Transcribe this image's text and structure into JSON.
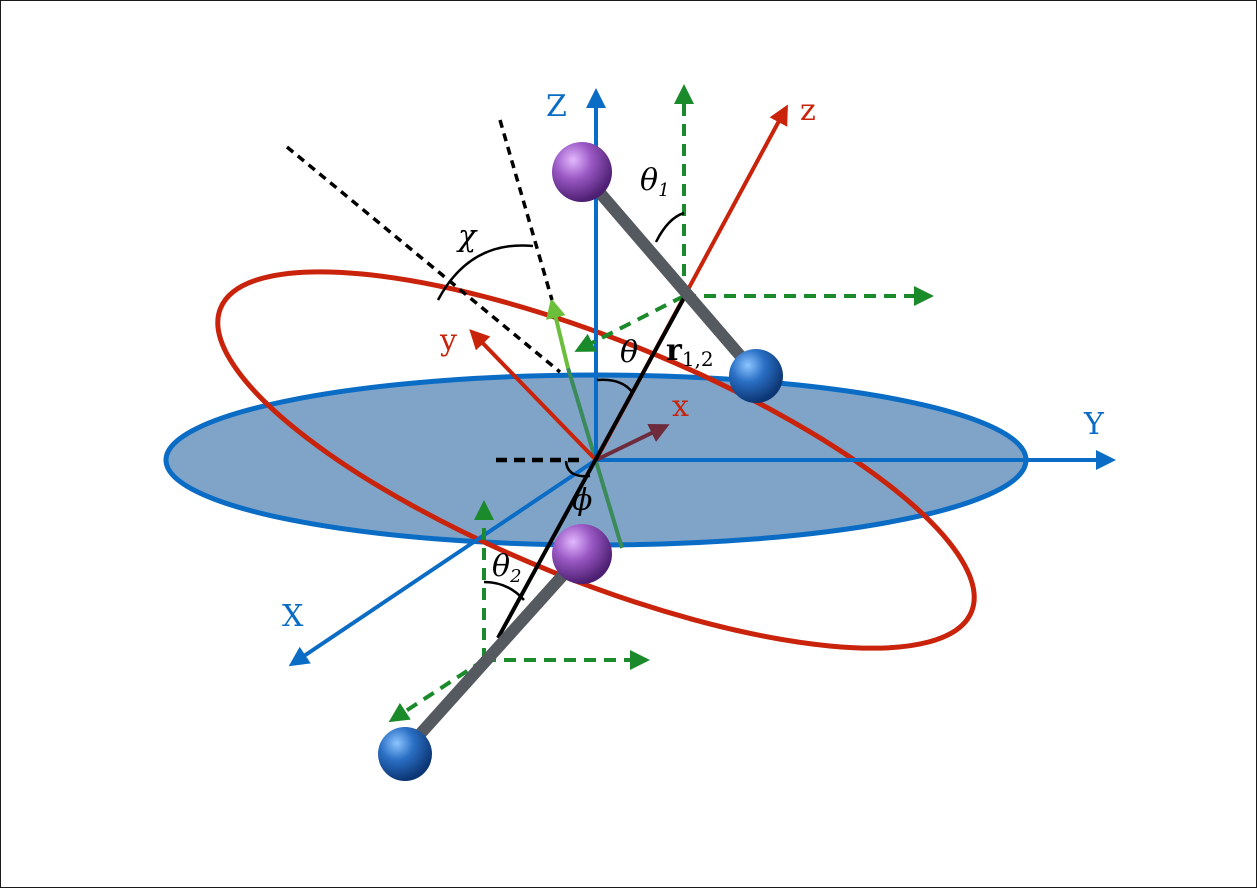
{
  "diagram": {
    "labels": {
      "lab_Z": "Z",
      "lab_Y": "Y",
      "lab_X": "X",
      "lab_z": "z",
      "lab_y": "y",
      "lab_x": "x",
      "lab_theta": "θ",
      "lab_theta1": "θ",
      "lab_theta1_sub": "1",
      "lab_theta2": "θ",
      "lab_theta2_sub": "2",
      "lab_chi": "χ",
      "lab_phi": "ϕ",
      "lab_r": "r",
      "lab_r_sub": "1,2"
    },
    "colors": {
      "lab_blue": "#0a6cc4",
      "mol_red": "#c9230b",
      "green_dash": "#1a8a2a",
      "light_green": "#6bbf3b",
      "dark_green": "#3a8a5a",
      "x_axis": "#6e2b3d",
      "rod": "#555a60",
      "disk_fill": "#7fa4c8",
      "atom_purple": "#8e4fb5",
      "atom_blue": "#1f5fae"
    }
  }
}
